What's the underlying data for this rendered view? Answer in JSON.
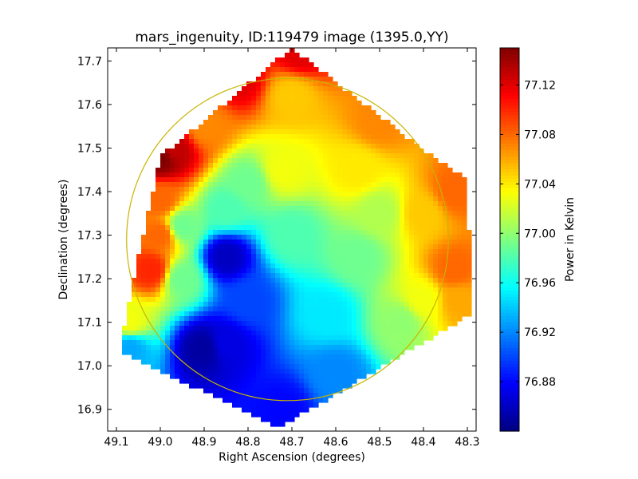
{
  "chart_data": {
    "type": "heatmap",
    "title": "mars_ingenuity, ID:119479 image (1395.0,YY)",
    "xlabel": "Right Ascension (degrees)",
    "ylabel": "Declination (degrees)",
    "x_axis": {
      "ticks": [
        49.1,
        49.0,
        48.9,
        48.8,
        48.7,
        48.6,
        48.5,
        48.4,
        48.3
      ],
      "tick_labels": [
        "49.1",
        "49.0",
        "48.9",
        "48.8",
        "48.7",
        "48.6",
        "48.5",
        "48.4",
        "48.3"
      ],
      "range": [
        49.12,
        48.28
      ],
      "reversed": true
    },
    "y_axis": {
      "ticks": [
        16.9,
        17.0,
        17.1,
        17.2,
        17.3,
        17.4,
        17.5,
        17.6,
        17.7
      ],
      "tick_labels": [
        "16.9",
        "17.0",
        "17.1",
        "17.2",
        "17.3",
        "17.4",
        "17.5",
        "17.6",
        "17.7"
      ],
      "range": [
        16.85,
        17.73
      ]
    },
    "colorbar": {
      "label": "Power in Kelvin",
      "ticks": [
        76.88,
        76.92,
        76.96,
        77.0,
        77.04,
        77.08,
        77.12
      ],
      "tick_labels": [
        "76.88",
        "76.92",
        "76.96",
        "77.00",
        "77.04",
        "77.08",
        "77.12"
      ],
      "range": [
        76.84,
        77.15
      ],
      "colormap": "jet"
    },
    "footprint_ra_dec": [
      [
        48.7,
        17.73
      ],
      [
        48.38,
        17.48
      ],
      [
        48.3,
        17.43
      ],
      [
        48.29,
        17.12
      ],
      [
        48.71,
        16.87
      ],
      [
        48.73,
        16.86
      ],
      [
        49.09,
        17.03
      ],
      [
        49.08,
        17.11
      ],
      [
        49.0,
        17.48
      ]
    ],
    "value_anchors": [
      {
        "ra": 48.68,
        "dec": 17.72,
        "value": 77.12
      },
      {
        "ra": 48.82,
        "dec": 17.66,
        "value": 77.12
      },
      {
        "ra": 48.97,
        "dec": 17.5,
        "value": 77.13
      },
      {
        "ra": 49.0,
        "dec": 17.48,
        "value": 77.15
      },
      {
        "ra": 48.7,
        "dec": 17.62,
        "value": 77.05
      },
      {
        "ra": 48.5,
        "dec": 17.56,
        "value": 77.07
      },
      {
        "ra": 48.33,
        "dec": 17.4,
        "value": 77.08
      },
      {
        "ra": 48.33,
        "dec": 17.22,
        "value": 77.08
      },
      {
        "ra": 48.4,
        "dec": 17.35,
        "value": 77.05
      },
      {
        "ra": 48.55,
        "dec": 17.45,
        "value": 77.04
      },
      {
        "ra": 48.72,
        "dec": 17.45,
        "value": 77.03
      },
      {
        "ra": 48.9,
        "dec": 17.55,
        "value": 77.07
      },
      {
        "ra": 49.0,
        "dec": 17.38,
        "value": 77.08
      },
      {
        "ra": 49.02,
        "dec": 17.22,
        "value": 77.1
      },
      {
        "ra": 49.0,
        "dec": 17.3,
        "value": 77.08
      },
      {
        "ra": 49.07,
        "dec": 17.1,
        "value": 77.03
      },
      {
        "ra": 49.07,
        "dec": 17.04,
        "value": 76.93
      },
      {
        "ra": 48.95,
        "dec": 17.32,
        "value": 76.99
      },
      {
        "ra": 48.85,
        "dec": 17.36,
        "value": 76.98
      },
      {
        "ra": 48.95,
        "dec": 17.2,
        "value": 76.99
      },
      {
        "ra": 48.85,
        "dec": 17.25,
        "value": 76.86
      },
      {
        "ra": 48.8,
        "dec": 17.15,
        "value": 76.9
      },
      {
        "ra": 48.9,
        "dec": 17.04,
        "value": 76.85
      },
      {
        "ra": 48.85,
        "dec": 17.05,
        "value": 76.87
      },
      {
        "ra": 48.72,
        "dec": 16.9,
        "value": 76.88
      },
      {
        "ra": 48.6,
        "dec": 16.98,
        "value": 76.92
      },
      {
        "ra": 48.62,
        "dec": 17.12,
        "value": 76.95
      },
      {
        "ra": 48.55,
        "dec": 17.25,
        "value": 76.99
      },
      {
        "ra": 48.7,
        "dec": 17.3,
        "value": 76.98
      },
      {
        "ra": 48.45,
        "dec": 17.1,
        "value": 77.0
      },
      {
        "ra": 48.4,
        "dec": 17.15,
        "value": 77.03
      },
      {
        "ra": 48.32,
        "dec": 17.15,
        "value": 77.06
      },
      {
        "ra": 48.5,
        "dec": 17.35,
        "value": 77.01
      },
      {
        "ra": 48.8,
        "dec": 17.42,
        "value": 76.99
      }
    ],
    "overlay_circle": {
      "center_ra": 48.71,
      "center_dec": 17.29,
      "radius_dec": 0.37,
      "color": "#c8b400"
    }
  }
}
